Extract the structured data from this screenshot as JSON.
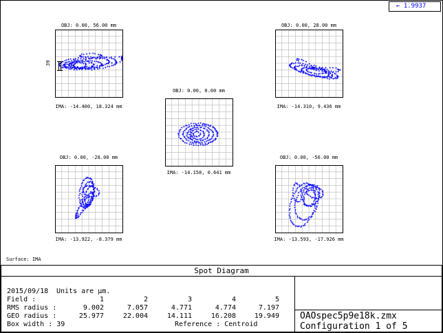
{
  "wavelength_badge": "←  1.9937",
  "surface_label": "Surface: IMA",
  "footer_title": "Spot Diagram",
  "scale_bar_label": "39",
  "spots": [
    {
      "obj": "OBJ: 0.00, 56.00 mm",
      "ima": "IMA: -14.400, 18.324 mm"
    },
    {
      "obj": "OBJ: 0.00, 28.00 mm",
      "ima": "IMA: -14.310, 9.436 mm"
    },
    {
      "obj": "OBJ: 0.00, 0.00 mm",
      "ima": "IMA: -14.158, 0.641 mm"
    },
    {
      "obj": "OBJ: 0.00, -28.00 mm",
      "ima": "IMA: -13.922, -8.379 mm"
    },
    {
      "obj": "OBJ: 0.00, -56.00 mm",
      "ima": "IMA: -13.593, -17.926 mm"
    }
  ],
  "info": {
    "date": "2015/09/18",
    "units": "Units are µm.",
    "field_label": "Field      :",
    "rms_label": "RMS radius :",
    "geo_label": "GEO radius :",
    "box_label": "Box width  : 39",
    "reference_label": "Reference  : Centroid",
    "fields": [
      "1",
      "2",
      "3",
      "4",
      "5"
    ],
    "rms": [
      "9.002",
      "7.057",
      "4.771",
      "4.774",
      "7.197"
    ],
    "geo": [
      "25.977",
      "22.004",
      "14.111",
      "16.208",
      "19.949"
    ]
  },
  "filename": "OAOspec5p9e18k.zmx",
  "configuration": "Configuration 1 of 5",
  "colors": {
    "spot": "#0000ff",
    "grid": "#b4b4b4",
    "frame": "#000000"
  }
}
